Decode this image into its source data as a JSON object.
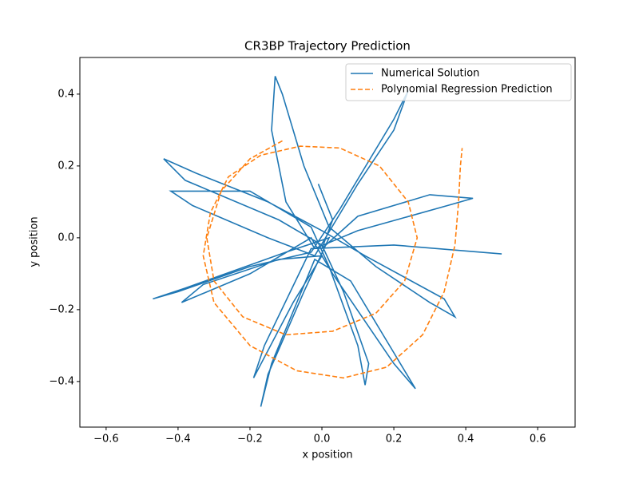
{
  "chart_data": {
    "type": "line",
    "title": "CR3BP Trajectory Prediction",
    "x_label": "x position",
    "y_label": "y position",
    "xlim": [
      -0.673,
      0.704
    ],
    "ylim": [
      -0.527,
      0.502
    ],
    "xticks": [
      {
        "value": -0.6,
        "label": "−0.6"
      },
      {
        "value": -0.4,
        "label": "−0.4"
      },
      {
        "value": -0.2,
        "label": "−0.2"
      },
      {
        "value": 0,
        "label": "0.0"
      },
      0.2,
      0.4,
      0.6
    ],
    "yticks": [
      {
        "value": -0.4,
        "label": "−0.4"
      },
      {
        "value": -0.2,
        "label": "−0.2"
      },
      {
        "value": 0,
        "label": "0.0"
      },
      0.2,
      0.4
    ],
    "legend": "upper right",
    "series": [
      {
        "name": "Numerical Solution",
        "color": "#1f77b4",
        "linestyle": "solid",
        "x": [
          -0.01,
          0.03,
          0.0,
          0.1,
          0.3,
          0.42,
          0.35,
          0.1,
          -0.02,
          -0.1,
          -0.14,
          -0.13,
          -0.11,
          -0.05,
          0.02,
          0.15,
          0.3,
          0.37,
          0.34,
          0.12,
          0.0,
          -0.15,
          -0.35,
          -0.44,
          -0.38,
          -0.12,
          0.0,
          0.06,
          0.13,
          0.12,
          0.1,
          0.02,
          -0.03,
          -0.2,
          -0.42,
          -0.36,
          -0.15,
          -0.02,
          0.1,
          0.2,
          0.24,
          0.2,
          0.05,
          -0.03,
          -0.2,
          -0.4,
          -0.47,
          -0.38,
          -0.1,
          0.02,
          -0.05,
          -0.15,
          -0.17,
          -0.14,
          -0.02,
          0.08,
          0.2,
          0.26,
          0.2,
          0.03,
          -0.03,
          -0.2,
          -0.39,
          -0.33,
          -0.12,
          0.0,
          -0.08,
          -0.19,
          -0.16,
          -0.03,
          0.2,
          0.5
        ],
        "y": [
          0.15,
          0.05,
          -0.03,
          0.06,
          0.12,
          0.11,
          0.09,
          0.02,
          -0.03,
          0.1,
          0.3,
          0.45,
          0.4,
          0.2,
          0.03,
          -0.08,
          -0.18,
          -0.22,
          -0.17,
          -0.05,
          0.02,
          0.1,
          0.18,
          0.22,
          0.16,
          0.05,
          -0.02,
          -0.15,
          -0.35,
          -0.41,
          -0.3,
          -0.08,
          0.03,
          0.13,
          0.13,
          0.09,
          0.0,
          -0.05,
          0.15,
          0.3,
          0.41,
          0.33,
          0.08,
          -0.04,
          -0.08,
          -0.15,
          -0.17,
          -0.14,
          -0.04,
          0.0,
          -0.15,
          -0.38,
          -0.47,
          -0.35,
          -0.06,
          -0.12,
          -0.32,
          -0.42,
          -0.35,
          -0.1,
          0.0,
          -0.1,
          -0.18,
          -0.13,
          -0.06,
          -0.05,
          -0.18,
          -0.39,
          -0.3,
          -0.03,
          -0.02,
          -0.045
        ]
      },
      {
        "name": "Polynomial Regression Prediction",
        "color": "#ff7f0e",
        "linestyle": "dashed",
        "x": [
          -0.11,
          -0.2,
          -0.28,
          -0.32,
          -0.3,
          -0.22,
          -0.1,
          0.03,
          0.15,
          0.23,
          0.265,
          0.24,
          0.16,
          0.05,
          -0.06,
          -0.17,
          -0.26,
          -0.31,
          -0.33,
          -0.3,
          -0.2,
          -0.07,
          0.06,
          0.18,
          0.28,
          0.34,
          0.37,
          0.38,
          0.385,
          0.39
        ],
        "y": [
          0.27,
          0.22,
          0.13,
          0.0,
          -0.12,
          -0.22,
          -0.27,
          -0.26,
          -0.21,
          -0.12,
          0.0,
          0.1,
          0.2,
          0.25,
          0.255,
          0.23,
          0.17,
          0.07,
          -0.05,
          -0.18,
          -0.3,
          -0.37,
          -0.39,
          -0.36,
          -0.27,
          -0.15,
          -0.02,
          0.1,
          0.2,
          0.25
        ]
      }
    ]
  }
}
